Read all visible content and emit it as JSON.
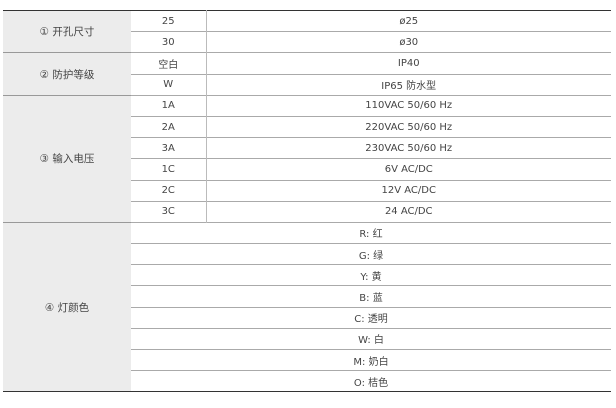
{
  "groups": [
    {
      "label": "① 开孔尺寸",
      "rows": [
        {
          "code": "25",
          "value": "ø25"
        },
        {
          "code": "30",
          "value": "ø30"
        }
      ]
    },
    {
      "label": "② 防护等级",
      "rows": [
        {
          "code": "空白",
          "value": "IP40"
        },
        {
          "code": "W",
          "value": "IP65 防水型"
        }
      ]
    },
    {
      "label": "③ 输入电压",
      "rows": [
        {
          "code": "1A",
          "value": "110VAC 50/60 Hz"
        },
        {
          "code": "2A",
          "value": "220VAC 50/60 Hz"
        },
        {
          "code": "3A",
          "value": "230VAC 50/60 Hz"
        },
        {
          "code": "1C",
          "value": "6V AC/DC"
        },
        {
          "code": "2C",
          "value": "12V AC/DC"
        },
        {
          "code": "3C",
          "value": "24 AC/DC"
        }
      ]
    },
    {
      "label": "④ 灯颜色",
      "rows": [
        {
          "value": "R: 红"
        },
        {
          "value": "G: 绿"
        },
        {
          "value": "Y: 黄"
        },
        {
          "value": "B: 蓝"
        },
        {
          "value": "C: 透明"
        },
        {
          "value": "W: 白"
        },
        {
          "value": "M: 奶白"
        },
        {
          "value": "O: 桔色"
        }
      ]
    }
  ]
}
